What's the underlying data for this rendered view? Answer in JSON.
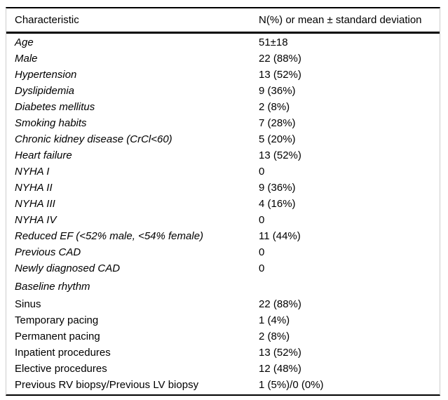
{
  "table": {
    "headers": [
      "Characteristic",
      "N(%) or mean ± standard deviation"
    ],
    "style": {
      "rule_color": "#000000",
      "side_border_color": "#cccccc",
      "text_color": "#000000",
      "background": "#ffffff"
    },
    "rows": [
      {
        "label": "Age",
        "value": "51±18",
        "italic": true,
        "indent": false,
        "section": false
      },
      {
        "label": "Male",
        "value": "22 (88%)",
        "italic": true,
        "indent": false,
        "section": false
      },
      {
        "label": "Hypertension",
        "value": "13 (52%)",
        "italic": true,
        "indent": false,
        "section": false
      },
      {
        "label": "Dyslipidemia",
        "value": "9 (36%)",
        "italic": true,
        "indent": false,
        "section": false
      },
      {
        "label": "Diabetes mellitus",
        "value": "2 (8%)",
        "italic": true,
        "indent": false,
        "section": false
      },
      {
        "label": "Smoking habits",
        "value": "7 (28%)",
        "italic": true,
        "indent": false,
        "section": false
      },
      {
        "label": "Chronic kidney disease (CrCl<60)",
        "value": "5 (20%)",
        "italic": true,
        "indent": false,
        "section": false
      },
      {
        "label": "Heart failure",
        "value": "13 (52%)",
        "italic": true,
        "indent": false,
        "section": false
      },
      {
        "label": "NYHA I",
        "value": "0",
        "italic": true,
        "indent": false,
        "section": false
      },
      {
        "label": "NYHA II",
        "value": "9 (36%)",
        "italic": true,
        "indent": false,
        "section": false
      },
      {
        "label": "NYHA III",
        "value": "4 (16%)",
        "italic": true,
        "indent": false,
        "section": false
      },
      {
        "label": "NYHA IV",
        "value": "0",
        "italic": true,
        "indent": false,
        "section": false
      },
      {
        "label": "Reduced EF (<52% male, <54% female)",
        "value": "11 (44%)",
        "italic": true,
        "indent": false,
        "section": false
      },
      {
        "label": "Previous CAD",
        "value": "0",
        "italic": true,
        "indent": false,
        "section": false
      },
      {
        "label": "Newly diagnosed CAD",
        "value": "0",
        "italic": true,
        "indent": false,
        "section": false
      },
      {
        "label": "Baseline rhythm",
        "value": "",
        "italic": true,
        "indent": false,
        "section": true
      },
      {
        "label": "Sinus",
        "value": "22 (88%)",
        "italic": false,
        "indent": true,
        "section": false
      },
      {
        "label": "Temporary pacing",
        "value": "1 (4%)",
        "italic": false,
        "indent": true,
        "section": false
      },
      {
        "label": "Permanent pacing",
        "value": "2 (8%)",
        "italic": false,
        "indent": true,
        "section": false
      },
      {
        "label": "Inpatient procedures",
        "value": "13 (52%)",
        "italic": false,
        "indent": true,
        "section": false
      },
      {
        "label": "Elective procedures",
        "value": "12 (48%)",
        "italic": false,
        "indent": true,
        "section": false
      },
      {
        "label": "Previous RV biopsy/Previous LV biopsy",
        "value": "1 (5%)/0 (0%)",
        "italic": false,
        "indent": true,
        "section": false
      }
    ]
  }
}
